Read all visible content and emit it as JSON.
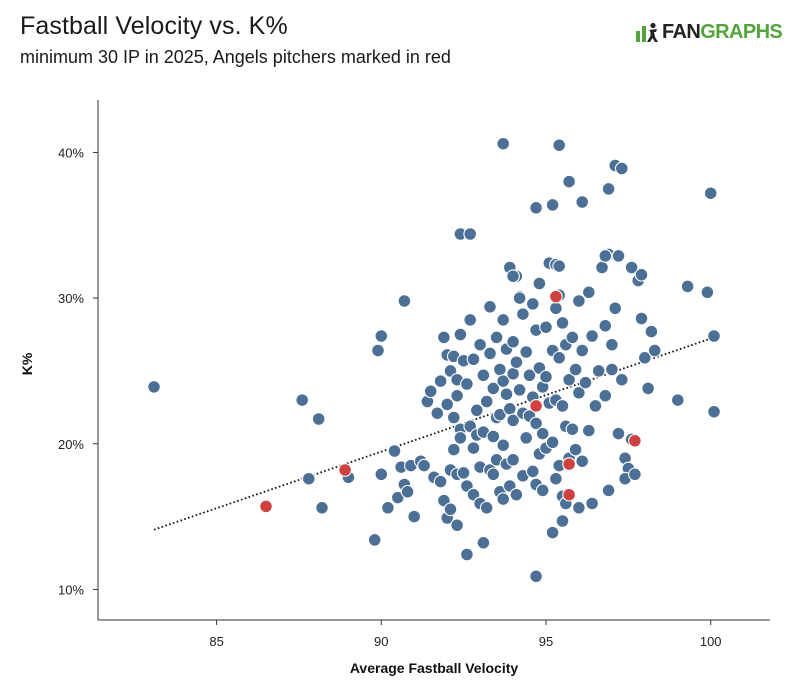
{
  "header": {
    "title": "Fastball Velocity vs. K%",
    "subtitle": "minimum 30 IP in 2025, Angels pitchers marked in red"
  },
  "logo": {
    "icon": "fangraphs-logo-icon",
    "text_dark": "FAN",
    "text_green": "GRAPHS",
    "colors": {
      "dark": "#222222",
      "green": "#53a43a"
    }
  },
  "chart_data": {
    "type": "scatter",
    "title": "Fastball Velocity vs. K%",
    "subtitle": "minimum 30 IP in 2025, Angels pitchers marked in red",
    "xlabel": "Average Fastball Velocity",
    "ylabel": "K%",
    "xlim": [
      81.4,
      101.8
    ],
    "ylim": [
      7.9,
      43.6
    ],
    "x_ticks": [
      85,
      90,
      95,
      100
    ],
    "y_ticks": [
      10,
      20,
      30,
      40
    ],
    "y_tick_labels": [
      "10%",
      "20%",
      "30%",
      "40%"
    ],
    "grid": false,
    "legend": "none",
    "colors": {
      "league": "#4c6f96",
      "angels": "#cf4040",
      "outline": "#ffffff",
      "trend": "#111111"
    },
    "trendline": {
      "x": [
        83.1,
        100.1
      ],
      "y": [
        14.1,
        27.3
      ],
      "style": "dotted"
    },
    "series": [
      {
        "color": "#4c6f96",
        "x": [
          83.1,
          87.6,
          87.8,
          88.1,
          88.2,
          89.0,
          89.8,
          89.9,
          90.0,
          90.0,
          90.2,
          90.4,
          90.5,
          90.6,
          90.7,
          90.8,
          90.9,
          91.0,
          91.2,
          91.3,
          91.4,
          91.5,
          91.6,
          91.7,
          91.8,
          91.8,
          91.9,
          91.9,
          92.0,
          92.0,
          92.0,
          92.1,
          92.1,
          92.1,
          92.2,
          92.2,
          92.2,
          92.3,
          92.3,
          92.3,
          92.3,
          92.4,
          92.4,
          92.4,
          92.5,
          92.5,
          92.6,
          92.6,
          92.7,
          92.7,
          92.8,
          92.8,
          92.8,
          92.9,
          92.9,
          93.0,
          93.0,
          93.0,
          93.1,
          93.1,
          93.2,
          93.2,
          93.3,
          93.3,
          93.3,
          93.4,
          93.4,
          93.4,
          93.5,
          93.5,
          93.5,
          93.6,
          93.6,
          93.6,
          93.7,
          93.7,
          93.7,
          93.7,
          93.8,
          93.8,
          93.8,
          93.9,
          93.9,
          93.9,
          94.0,
          94.0,
          94.0,
          94.0,
          94.1,
          94.1,
          94.1,
          94.2,
          94.2,
          94.3,
          94.3,
          94.3,
          94.4,
          94.4,
          94.5,
          94.5,
          94.6,
          94.6,
          94.6,
          94.7,
          94.7,
          94.7,
          94.8,
          94.8,
          94.8,
          94.9,
          94.9,
          94.9,
          95.0,
          95.0,
          95.0,
          95.1,
          95.1,
          95.2,
          95.2,
          95.3,
          95.3,
          95.3,
          95.4,
          95.4,
          95.4,
          95.5,
          95.5,
          95.5,
          95.6,
          95.6,
          95.6,
          95.7,
          95.7,
          95.8,
          95.8,
          95.9,
          95.9,
          96.0,
          96.0,
          96.1,
          96.1,
          96.2,
          96.3,
          96.3,
          96.4,
          96.5,
          96.6,
          96.7,
          96.8,
          96.8,
          96.9,
          97.0,
          97.0,
          97.1,
          97.2,
          97.3,
          97.4,
          97.5,
          97.6,
          97.8,
          97.9,
          98.0,
          98.1,
          98.2,
          98.3,
          99.0,
          99.3,
          99.9,
          100.0,
          100.1,
          100.1,
          93.7,
          95.4,
          95.7,
          94.7,
          95.2,
          96.1,
          96.9,
          97.1,
          97.3,
          92.4,
          92.7,
          96.8,
          97.2,
          97.6,
          97.9,
          94.0,
          94.2,
          95.3,
          95.4,
          89.9,
          90.7,
          92.6,
          93.1,
          94.7,
          95.2,
          95.5,
          96.0,
          96.4,
          96.9,
          97.4,
          97.7
        ],
        "y": [
          23.9,
          23.0,
          17.6,
          21.7,
          15.6,
          17.7,
          13.4,
          26.4,
          27.4,
          17.9,
          15.6,
          19.5,
          16.3,
          18.4,
          17.2,
          16.7,
          18.5,
          15.0,
          18.8,
          18.5,
          22.9,
          23.6,
          17.7,
          22.1,
          24.3,
          17.4,
          27.3,
          16.1,
          26.1,
          22.7,
          14.9,
          18.2,
          25.0,
          15.5,
          21.8,
          26.0,
          19.6,
          24.4,
          23.3,
          17.9,
          14.4,
          27.5,
          21.0,
          20.4,
          25.7,
          18.0,
          24.1,
          17.1,
          28.5,
          21.2,
          25.8,
          19.7,
          16.5,
          22.3,
          20.6,
          26.8,
          18.4,
          15.9,
          24.7,
          20.8,
          15.6,
          22.9,
          29.4,
          26.2,
          18.2,
          23.8,
          20.5,
          17.9,
          27.3,
          21.8,
          18.9,
          25.1,
          22.0,
          16.7,
          28.5,
          24.3,
          19.9,
          16.2,
          26.5,
          23.4,
          18.6,
          32.1,
          22.4,
          17.1,
          27.0,
          24.8,
          21.6,
          18.9,
          31.5,
          25.6,
          16.5,
          30.1,
          23.7,
          28.9,
          22.1,
          17.8,
          26.3,
          20.4,
          24.7,
          21.9,
          29.6,
          23.2,
          18.1,
          27.8,
          21.4,
          17.2,
          31.0,
          25.2,
          19.3,
          23.9,
          20.7,
          16.8,
          28.0,
          24.6,
          19.7,
          32.4,
          22.8,
          26.4,
          20.1,
          29.3,
          23.0,
          17.6,
          30.2,
          25.9,
          18.5,
          28.3,
          22.6,
          16.4,
          26.8,
          21.2,
          15.9,
          24.4,
          19.0,
          27.3,
          21.0,
          25.1,
          19.6,
          29.8,
          23.5,
          26.4,
          18.8,
          24.2,
          30.4,
          20.9,
          27.4,
          22.6,
          25.0,
          32.1,
          28.1,
          23.3,
          33.0,
          26.8,
          25.1,
          29.3,
          20.7,
          24.4,
          19.0,
          18.3,
          20.3,
          31.2,
          28.6,
          25.9,
          23.8,
          27.7,
          26.4,
          23.0,
          30.8,
          30.4,
          37.2,
          22.2,
          27.4,
          40.6,
          40.5,
          38.0,
          36.2,
          36.4,
          36.6,
          37.5,
          39.1,
          38.9,
          34.4,
          34.4,
          32.9,
          32.9,
          32.1,
          31.6,
          31.5,
          30.0,
          32.3,
          32.2,
          26.4,
          29.8,
          12.4,
          13.2,
          10.9,
          13.9,
          14.7,
          15.6,
          15.9,
          16.8,
          17.6,
          17.9
        ]
      },
      {
        "color": "#cf4040",
        "x": [
          86.5,
          88.9,
          94.7,
          95.3,
          95.7,
          95.7,
          97.7
        ],
        "y": [
          15.7,
          18.2,
          22.6,
          30.1,
          18.6,
          16.5,
          20.2
        ]
      }
    ]
  }
}
